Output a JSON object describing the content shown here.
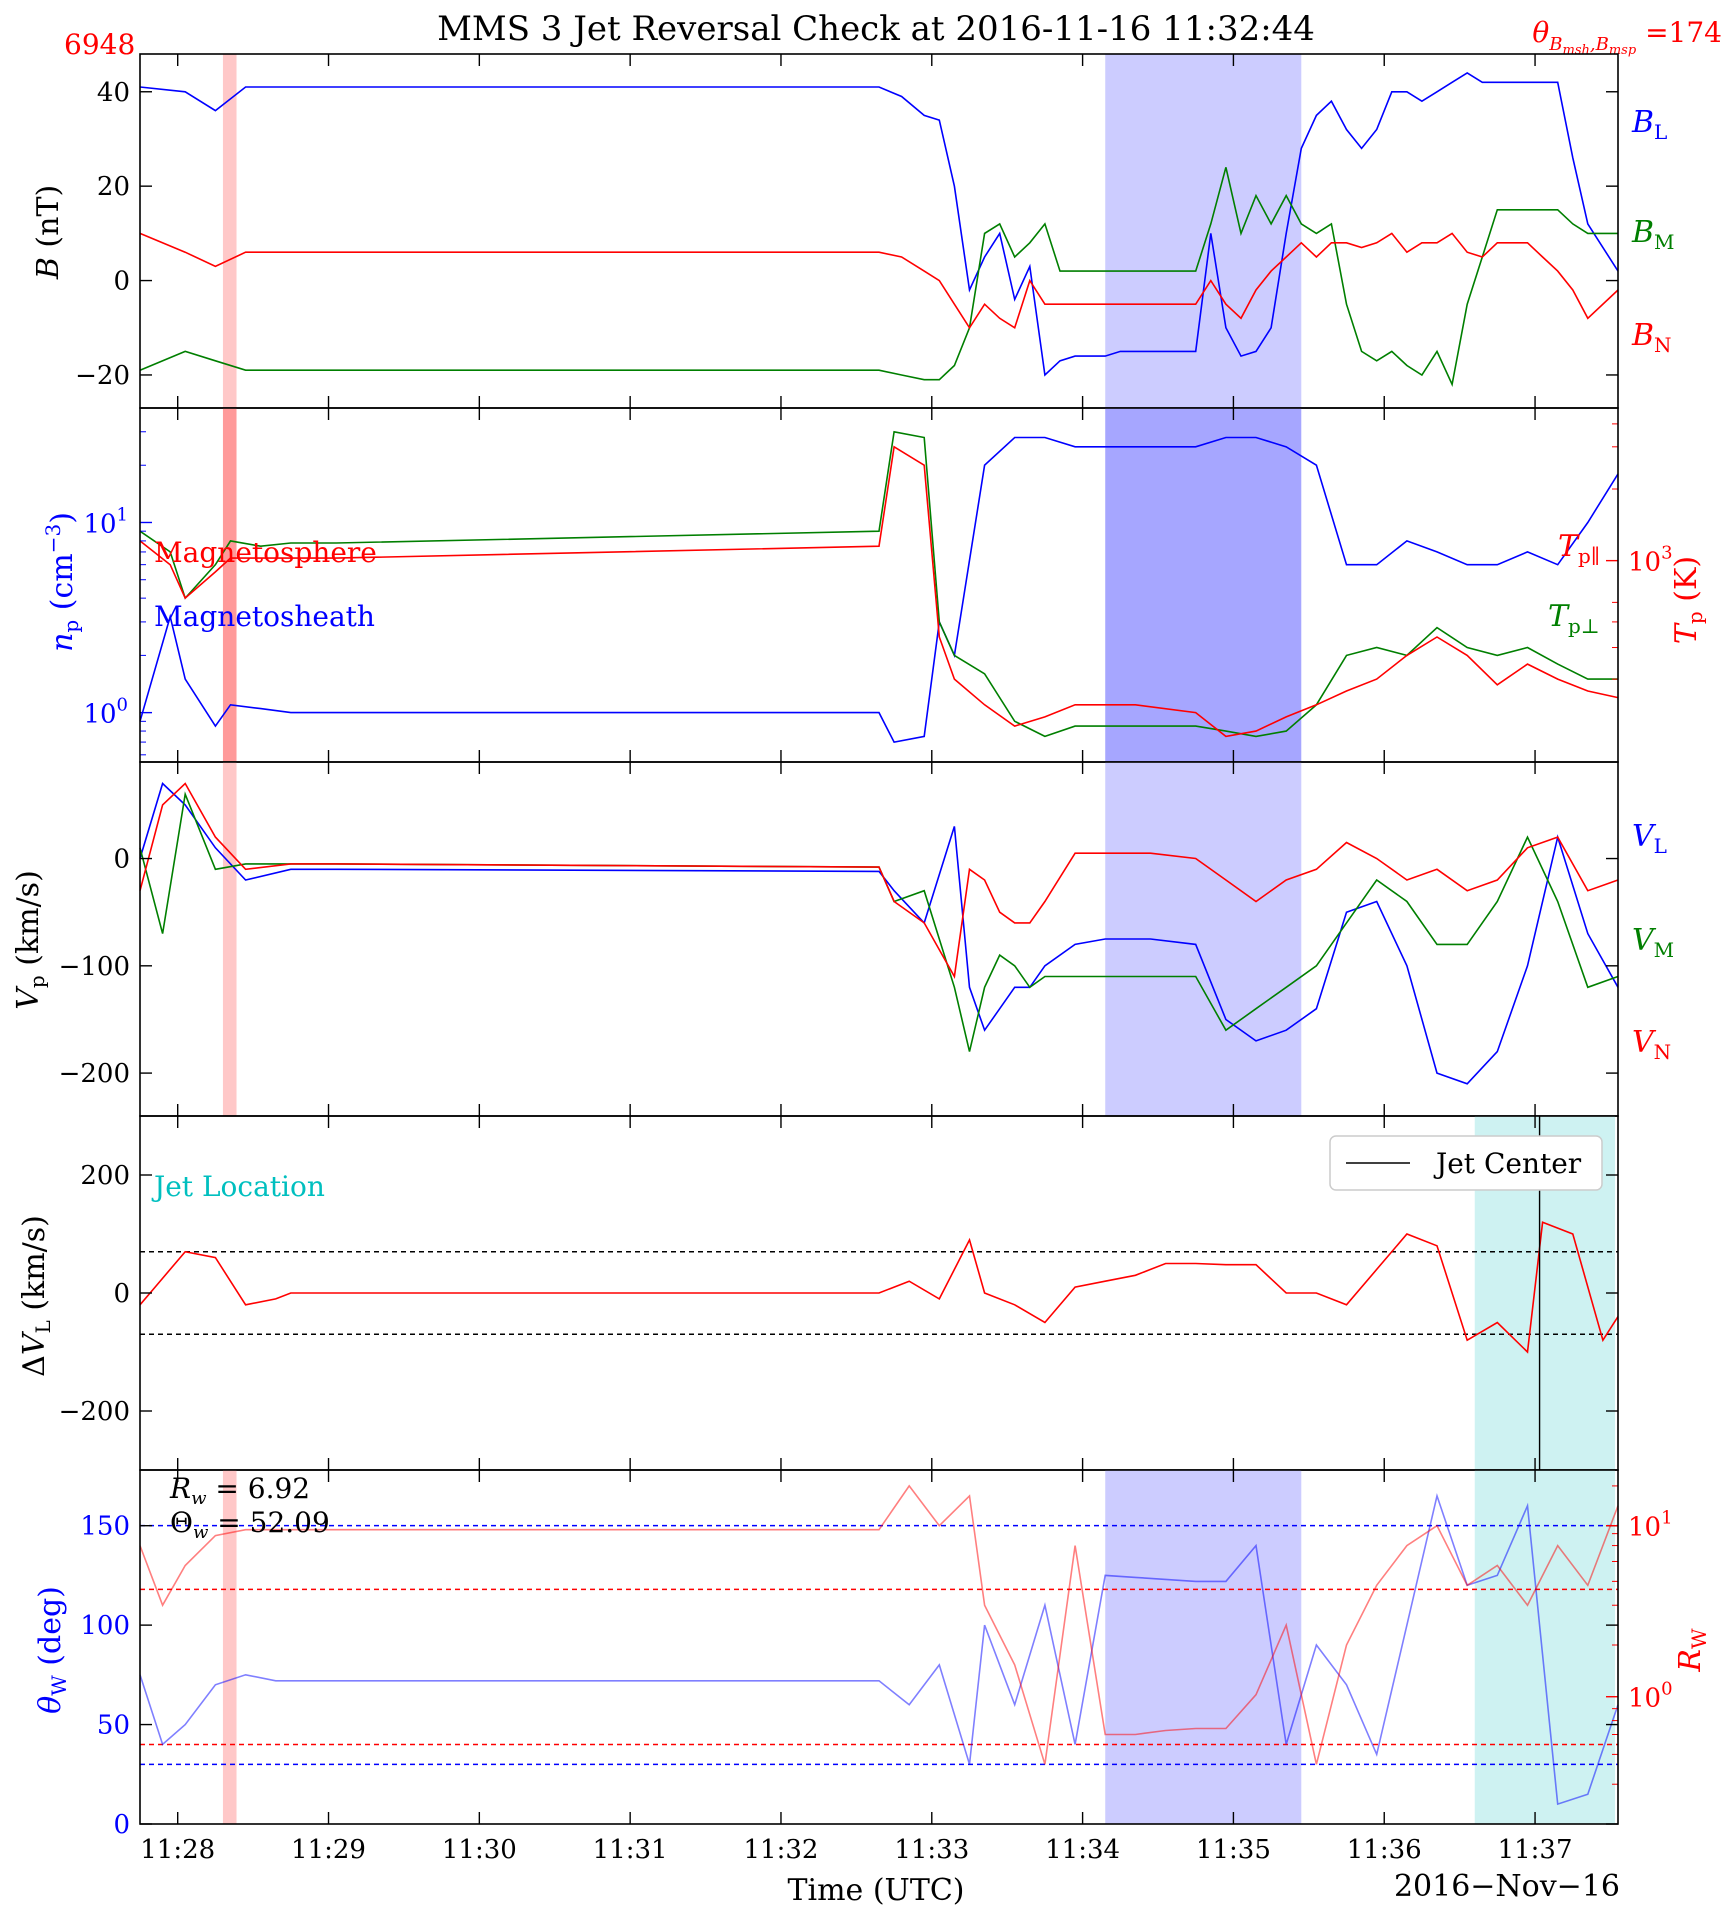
{
  "header": {
    "title": "MMS 3 Jet Reversal Check at 2016-11-16 11:32:44",
    "event_number": "6948",
    "theta_label": "θB_msh,B_msp =174",
    "theta_value": "174"
  },
  "footer": {
    "xlabel": "Time (UTC)",
    "date": "2016−Nov−16"
  },
  "colors": {
    "blue": "#0000ff",
    "green": "#007f00",
    "red": "#ff0000",
    "cyan": "#00bfbf",
    "shade_blue": "#ccccff",
    "shade_dark_blue": "#a6a6ff",
    "shade_red": "#ffc8c8",
    "shade_cyan": "#cef2f2"
  },
  "chart_data": [
    {
      "type": "line",
      "panel": "B",
      "ylabel": "B (nT)",
      "ylim": [
        -27,
        48
      ],
      "yticks": [
        -20,
        0,
        20,
        40
      ],
      "ytick_labels": [
        "−20",
        "0",
        "20",
        "40"
      ],
      "x": [
        0,
        0.3,
        0.5,
        0.7,
        1.0,
        1.1,
        1.3,
        4.9,
        5.05,
        5.2,
        5.3,
        5.4,
        5.5,
        5.6,
        5.7,
        5.8,
        5.9,
        6.0,
        6.1,
        6.2,
        6.3,
        6.4,
        6.5,
        6.6,
        6.7,
        6.8,
        6.9,
        7.0,
        7.1,
        7.2,
        7.3,
        7.4,
        7.5,
        7.6,
        7.7,
        7.8,
        7.9,
        8.0,
        8.1,
        8.2,
        8.3,
        8.4,
        8.5,
        8.6,
        8.7,
        8.8,
        8.9,
        9.0,
        9.1,
        9.2,
        9.3,
        9.4,
        9.5,
        9.6,
        9.8
      ],
      "series": [
        {
          "name": "B_L",
          "label": "B_L",
          "color": "#0000ff",
          "values": [
            41,
            40,
            36,
            41,
            41,
            41,
            41,
            41,
            39,
            35,
            34,
            20,
            -2,
            5,
            10,
            -4,
            3,
            -20,
            -17,
            -16,
            -16,
            -16,
            -15,
            -15,
            -15,
            -15,
            -15,
            -15,
            10,
            -10,
            -16,
            -15,
            -10,
            10,
            28,
            35,
            38,
            32,
            28,
            32,
            40,
            40,
            38,
            40,
            42,
            44,
            42,
            42,
            42,
            42,
            42,
            42,
            26,
            12,
            2
          ]
        },
        {
          "name": "B_M",
          "label": "B_M",
          "color": "#007f00",
          "values": [
            -19,
            -15,
            -17,
            -19,
            -19,
            -19,
            -19,
            -19,
            -20,
            -21,
            -21,
            -18,
            -10,
            10,
            12,
            5,
            8,
            12,
            2,
            2,
            2,
            2,
            2,
            2,
            2,
            2,
            2,
            2,
            12,
            24,
            10,
            18,
            12,
            18,
            12,
            10,
            12,
            -5,
            -15,
            -17,
            -15,
            -18,
            -20,
            -15,
            -22,
            -5,
            5,
            15,
            15,
            15,
            15,
            15,
            12,
            10,
            10
          ]
        },
        {
          "name": "B_N",
          "label": "B_N",
          "color": "#ff0000",
          "values": [
            10,
            6,
            3,
            6,
            6,
            6,
            6,
            6,
            5,
            2,
            0,
            -5,
            -10,
            -5,
            -8,
            -10,
            0,
            -5,
            -5,
            -5,
            -5,
            -5,
            -5,
            -5,
            -5,
            -5,
            -5,
            -5,
            0,
            -5,
            -8,
            -2,
            2,
            5,
            8,
            5,
            8,
            8,
            7,
            8,
            10,
            6,
            8,
            8,
            10,
            6,
            5,
            8,
            8,
            8,
            5,
            2,
            -2,
            -8,
            -2
          ]
        }
      ]
    },
    {
      "type": "line",
      "panel": "n_T",
      "ylabel_left": "n_p (cm^-3)",
      "ylabel_right": "T_p (K)",
      "left_scale": "log",
      "left_ticks": [
        1,
        10
      ],
      "left_tick_labels": [
        "10^0",
        "10^1"
      ],
      "right_tick_labels": [
        "10^3"
      ],
      "annotations": [
        {
          "text": "Magnetosphere",
          "color": "#ff0000"
        },
        {
          "text": "Magnetosheath",
          "color": "#0000ff"
        }
      ],
      "x": [
        0,
        0.2,
        0.3,
        0.5,
        0.6,
        0.8,
        1.0,
        1.3,
        4.9,
        5.0,
        5.2,
        5.3,
        5.4,
        5.6,
        5.8,
        6.0,
        6.2,
        6.4,
        6.6,
        7.0,
        7.2,
        7.4,
        7.6,
        7.8,
        8.0,
        8.2,
        8.4,
        8.6,
        8.8,
        9.0,
        9.2,
        9.4,
        9.6,
        9.8
      ],
      "series": [
        {
          "name": "n_p",
          "color": "#0000ff",
          "values": [
            0.9,
            3.2,
            1.5,
            0.85,
            1.1,
            1.05,
            1.0,
            1.0,
            1.0,
            0.7,
            0.75,
            3.0,
            2.0,
            20,
            28,
            28,
            25,
            25,
            25,
            25,
            28,
            28,
            25,
            20,
            6,
            6,
            8,
            7,
            6,
            6,
            7,
            6,
            10,
            18
          ]
        },
        {
          "name": "T_perp",
          "label": "T_p⊥",
          "color": "#007f00",
          "values": [
            9.0,
            7.0,
            4.0,
            6.0,
            8.0,
            7.5,
            7.8,
            7.8,
            9.0,
            30,
            28,
            3.0,
            2.0,
            1.6,
            0.9,
            0.75,
            0.85,
            0.85,
            0.85,
            0.85,
            0.8,
            0.75,
            0.8,
            1.1,
            2.0,
            2.2,
            2.0,
            2.8,
            2.2,
            2.0,
            2.2,
            1.8,
            1.5,
            1.5
          ]
        },
        {
          "name": "T_par",
          "label": "T_p∥",
          "color": "#ff0000",
          "values": [
            8.0,
            6.0,
            4.0,
            5.5,
            6.5,
            6.5,
            6.5,
            6.5,
            7.5,
            25,
            20,
            2.5,
            1.5,
            1.1,
            0.85,
            0.95,
            1.1,
            1.1,
            1.1,
            1.0,
            0.75,
            0.8,
            0.95,
            1.1,
            1.3,
            1.5,
            2.0,
            2.5,
            2.0,
            1.4,
            1.8,
            1.5,
            1.3,
            1.2
          ]
        }
      ]
    },
    {
      "type": "line",
      "panel": "V",
      "ylabel": "V_p (km/s)",
      "ylim": [
        -240,
        90
      ],
      "yticks": [
        -200,
        -100,
        0
      ],
      "ytick_labels": [
        "−200",
        "−100",
        "0"
      ],
      "x": [
        0,
        0.15,
        0.3,
        0.5,
        0.7,
        1.0,
        1.3,
        4.9,
        5.0,
        5.2,
        5.4,
        5.5,
        5.6,
        5.7,
        5.8,
        5.9,
        6.0,
        6.2,
        6.4,
        6.5,
        6.6,
        6.7,
        7.0,
        7.2,
        7.4,
        7.6,
        7.8,
        8.0,
        8.2,
        8.4,
        8.6,
        8.8,
        9.0,
        9.2,
        9.4,
        9.6,
        9.8
      ],
      "series": [
        {
          "name": "V_L",
          "label": "V_L",
          "color": "#0000ff",
          "values": [
            0,
            70,
            50,
            10,
            -20,
            -10,
            -10,
            -12,
            -30,
            -60,
            30,
            -120,
            -160,
            -140,
            -120,
            -120,
            -100,
            -80,
            -75,
            -75,
            -75,
            -75,
            -80,
            -150,
            -170,
            -160,
            -140,
            -50,
            -40,
            -100,
            -200,
            -210,
            -180,
            -100,
            20,
            -70,
            -120
          ]
        },
        {
          "name": "V_M",
          "label": "V_M",
          "color": "#007f00",
          "values": [
            10,
            -70,
            60,
            -10,
            -5,
            -5,
            -5,
            -8,
            -40,
            -30,
            -120,
            -180,
            -120,
            -90,
            -100,
            -120,
            -110,
            -110,
            -110,
            -110,
            -110,
            -110,
            -110,
            -160,
            -140,
            -120,
            -100,
            -60,
            -20,
            -40,
            -80,
            -80,
            -40,
            20,
            -40,
            -120,
            -110
          ]
        },
        {
          "name": "V_N",
          "label": "V_N",
          "color": "#ff0000",
          "values": [
            -30,
            50,
            70,
            20,
            -10,
            -5,
            -5,
            -8,
            -40,
            -60,
            -110,
            -10,
            -20,
            -50,
            -60,
            -60,
            -40,
            5,
            5,
            5,
            5,
            5,
            0,
            -20,
            -40,
            -20,
            -10,
            15,
            0,
            -20,
            -10,
            -30,
            -20,
            10,
            20,
            -30,
            -20
          ]
        }
      ]
    },
    {
      "type": "line",
      "panel": "dVL",
      "ylabel": "ΔV_L (km/s)",
      "ylim": [
        -300,
        300
      ],
      "yticks": [
        -200,
        0,
        200
      ],
      "ytick_labels": [
        "−200",
        "0",
        "200"
      ],
      "thresholds": [
        70,
        -70
      ],
      "legend": "Jet Center",
      "legend_position": "top-right",
      "annotation": "Jet Location",
      "jet_center_x": 9.28,
      "x": [
        0,
        0.1,
        0.3,
        0.5,
        0.7,
        0.9,
        1.0,
        1.3,
        4.9,
        5.1,
        5.3,
        5.5,
        5.6,
        5.8,
        6.0,
        6.2,
        6.4,
        6.6,
        6.8,
        7.0,
        7.2,
        7.4,
        7.6,
        7.8,
        8.0,
        8.2,
        8.4,
        8.6,
        8.8,
        9.0,
        9.2,
        9.3,
        9.5,
        9.7,
        9.8
      ],
      "series": [
        {
          "name": "ΔV_L",
          "color": "#ff0000",
          "values": [
            -20,
            10,
            70,
            60,
            -20,
            -10,
            0,
            0,
            0,
            20,
            -10,
            90,
            0,
            -20,
            -50,
            10,
            20,
            30,
            50,
            50,
            48,
            48,
            0,
            0,
            -20,
            40,
            100,
            80,
            -80,
            -50,
            -100,
            120,
            100,
            -80,
            -40
          ]
        }
      ]
    },
    {
      "type": "line",
      "panel": "theta_R",
      "ylabel_left": "θ_W (deg)",
      "ylabel_right": "R_W",
      "ylim": [
        0,
        178
      ],
      "yticks": [
        0,
        50,
        100,
        150
      ],
      "ytick_labels": [
        "0",
        "50",
        "100",
        "150"
      ],
      "right_tick_labels": [
        "10^0",
        "10^1"
      ],
      "thresholds_blue": [
        150,
        30
      ],
      "thresholds_red_theta": [
        118,
        40
      ],
      "annotation": [
        "R_w = 6.92",
        "Θ_w = 52.09"
      ],
      "R_w": "6.92",
      "Theta_w": "52.09",
      "x": [
        0,
        0.15,
        0.3,
        0.5,
        0.7,
        0.9,
        1.0,
        1.3,
        4.9,
        5.1,
        5.3,
        5.5,
        5.6,
        5.8,
        6.0,
        6.2,
        6.4,
        6.6,
        6.8,
        7.0,
        7.2,
        7.4,
        7.6,
        7.8,
        8.0,
        8.2,
        8.4,
        8.6,
        8.8,
        9.0,
        9.2,
        9.4,
        9.6,
        9.8
      ],
      "series": [
        {
          "name": "θ_W",
          "color": "#0000ff",
          "alpha": 0.5,
          "values": [
            75,
            40,
            50,
            70,
            75,
            72,
            72,
            72,
            72,
            60,
            80,
            30,
            100,
            60,
            110,
            40,
            125,
            124,
            123,
            122,
            122,
            140,
            40,
            90,
            70,
            35,
            100,
            165,
            120,
            125,
            160,
            10,
            15,
            60
          ]
        },
        {
          "name": "R_W",
          "color": "#ff0000",
          "alpha": 0.5,
          "values": [
            140,
            110,
            130,
            145,
            148,
            148,
            148,
            148,
            148,
            170,
            150,
            165,
            110,
            80,
            30,
            140,
            45,
            45,
            47,
            48,
            48,
            65,
            100,
            30,
            90,
            120,
            140,
            150,
            120,
            130,
            110,
            140,
            120,
            160
          ]
        }
      ]
    }
  ],
  "x_axis": {
    "range_minutes": [
      0,
      9.8
    ],
    "tick_minutes": [
      0.25,
      1.25,
      2.25,
      3.25,
      4.25,
      5.25,
      6.25,
      7.25,
      8.25,
      9.25
    ],
    "tick_labels": [
      "11:28",
      "11:29",
      "11:30",
      "11:31",
      "11:32",
      "11:33",
      "11:34",
      "11:35",
      "11:36",
      "11:37"
    ],
    "zero_time": "11:27:45"
  },
  "shading": {
    "red_span": [
      0.55,
      0.64
    ],
    "blue_span": [
      6.4,
      7.7
    ],
    "cyan_span": [
      8.85,
      9.78
    ]
  }
}
